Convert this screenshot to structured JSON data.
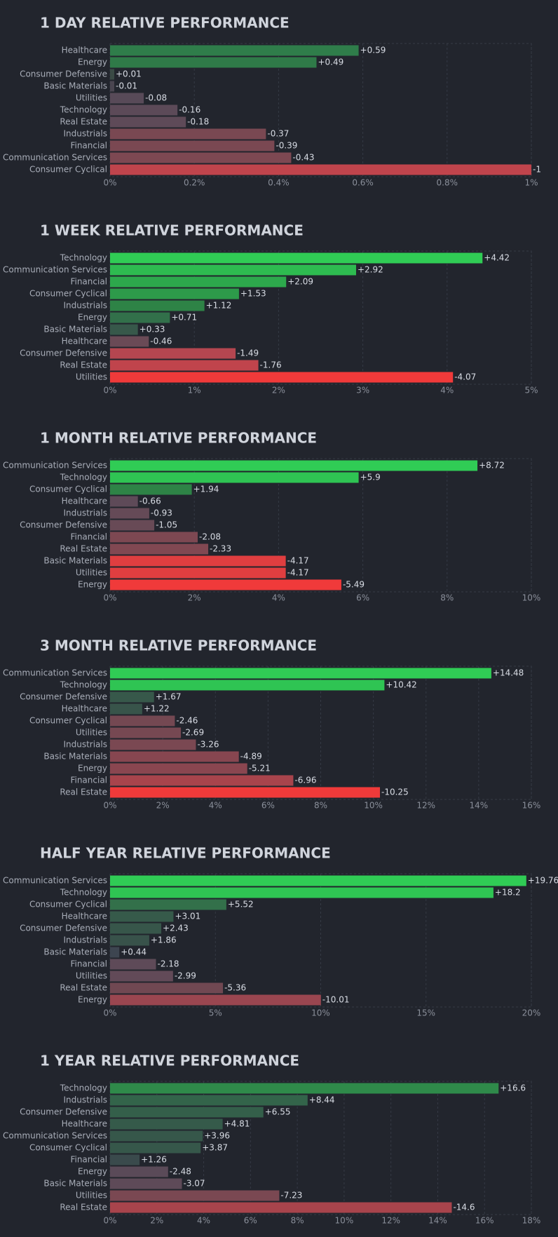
{
  "chart_data": [
    {
      "type": "bar",
      "title": "1 DAY RELATIVE PERFORMANCE",
      "categories": [
        "Healthcare",
        "Energy",
        "Consumer Defensive",
        "Basic Materials",
        "Utilities",
        "Technology",
        "Real Estate",
        "Industrials",
        "Financial",
        "Communication Services",
        "Consumer Cyclical"
      ],
      "values": [
        0.59,
        0.49,
        0.01,
        -0.01,
        -0.08,
        -0.16,
        -0.18,
        -0.37,
        -0.39,
        -0.43,
        -1
      ],
      "value_labels": [
        "+0.59",
        "+0.49",
        "+0.01",
        "-0.01",
        "-0.08",
        "-0.16",
        "-0.18",
        "-0.37",
        "-0.39",
        "-0.43",
        "-1"
      ],
      "colors": [
        "#2f7d4a",
        "#2f7a48",
        "#3a4a45",
        "#4a4550",
        "#584a58",
        "#5c4a58",
        "#5e4a58",
        "#794852",
        "#7a4852",
        "#7d4852",
        "#c0444c"
      ],
      "xlim": [
        0,
        1
      ],
      "xticks": [
        {
          "value": 0,
          "label": "0%"
        },
        {
          "value": 0.2,
          "label": "0.2%"
        },
        {
          "value": 0.4,
          "label": "0.4%"
        },
        {
          "value": 0.6,
          "label": "0.6%"
        },
        {
          "value": 0.8,
          "label": "0.8%"
        },
        {
          "value": 1,
          "label": "1%"
        }
      ],
      "grid": true
    },
    {
      "type": "bar",
      "title": "1 WEEK RELATIVE PERFORMANCE",
      "categories": [
        "Technology",
        "Communication Services",
        "Financial",
        "Consumer Cyclical",
        "Industrials",
        "Energy",
        "Basic Materials",
        "Healthcare",
        "Consumer Defensive",
        "Real Estate",
        "Utilities"
      ],
      "values": [
        4.42,
        2.92,
        2.09,
        1.53,
        1.12,
        0.71,
        0.33,
        -0.46,
        -1.49,
        -1.76,
        -4.07
      ],
      "value_labels": [
        "+4.42",
        "+2.92",
        "+2.09",
        "+1.53",
        "+1.12",
        "+0.71",
        "+0.33",
        "-0.46",
        "-1.49",
        "-1.76",
        "-4.07"
      ],
      "colors": [
        "#30cc55",
        "#2ebb50",
        "#2da84c",
        "#2d9a4a",
        "#2e8346",
        "#32704a",
        "#37584a",
        "#6a4a56",
        "#b54650",
        "#c0444c",
        "#f03a3a"
      ],
      "xlim": [
        0,
        5
      ],
      "xticks": [
        {
          "value": 0,
          "label": "0%"
        },
        {
          "value": 1,
          "label": "1%"
        },
        {
          "value": 2,
          "label": "2%"
        },
        {
          "value": 3,
          "label": "3%"
        },
        {
          "value": 4,
          "label": "4%"
        },
        {
          "value": 5,
          "label": "5%"
        }
      ],
      "grid": true
    },
    {
      "type": "bar",
      "title": "1 MONTH RELATIVE PERFORMANCE",
      "categories": [
        "Communication Services",
        "Technology",
        "Consumer Cyclical",
        "Healthcare",
        "Industrials",
        "Consumer Defensive",
        "Financial",
        "Real Estate",
        "Basic Materials",
        "Utilities",
        "Energy"
      ],
      "values": [
        8.72,
        5.9,
        1.94,
        -0.66,
        -0.93,
        -1.05,
        -2.08,
        -2.33,
        -4.17,
        -4.17,
        -5.49
      ],
      "value_labels": [
        "+8.72",
        "+5.9",
        "+1.94",
        "-0.66",
        "-0.93",
        "-1.05",
        "-2.08",
        "-2.33",
        "-4.17",
        "-4.17",
        "-5.49"
      ],
      "colors": [
        "#30cc55",
        "#2fc453",
        "#2e8346",
        "#5e4a58",
        "#654a57",
        "#684a56",
        "#7d4852",
        "#814852",
        "#e03e40",
        "#e03e40",
        "#f03a3a"
      ],
      "xlim": [
        0,
        10
      ],
      "xticks": [
        {
          "value": 0,
          "label": "0%"
        },
        {
          "value": 2,
          "label": "2%"
        },
        {
          "value": 4,
          "label": "4%"
        },
        {
          "value": 6,
          "label": "6%"
        },
        {
          "value": 8,
          "label": "8%"
        },
        {
          "value": 10,
          "label": "10%"
        }
      ],
      "grid": true
    },
    {
      "type": "bar",
      "title": "3 MONTH RELATIVE PERFORMANCE",
      "categories": [
        "Communication Services",
        "Technology",
        "Consumer Defensive",
        "Healthcare",
        "Consumer Cyclical",
        "Utilities",
        "Industrials",
        "Basic Materials",
        "Energy",
        "Financial",
        "Real Estate"
      ],
      "values": [
        14.48,
        10.42,
        1.67,
        1.22,
        -2.46,
        -2.69,
        -3.26,
        -4.89,
        -5.21,
        -6.96,
        -10.25
      ],
      "value_labels": [
        "+14.48",
        "+10.42",
        "+1.67",
        "+1.22",
        "-2.46",
        "-2.69",
        "-3.26",
        "-4.89",
        "-5.21",
        "-6.96",
        "-10.25"
      ],
      "colors": [
        "#30cc55",
        "#2fc453",
        "#37584a",
        "#38544a",
        "#744852",
        "#764852",
        "#7a4852",
        "#874650",
        "#8a4650",
        "#a8444c",
        "#f03a3a"
      ],
      "xlim": [
        0,
        16
      ],
      "xticks": [
        {
          "value": 0,
          "label": "0%"
        },
        {
          "value": 2,
          "label": "2%"
        },
        {
          "value": 4,
          "label": "4%"
        },
        {
          "value": 6,
          "label": "6%"
        },
        {
          "value": 8,
          "label": "8%"
        },
        {
          "value": 10,
          "label": "10%"
        },
        {
          "value": 12,
          "label": "12%"
        },
        {
          "value": 14,
          "label": "14%"
        },
        {
          "value": 16,
          "label": "16%"
        }
      ],
      "grid": true
    },
    {
      "type": "bar",
      "title": "HALF YEAR RELATIVE PERFORMANCE",
      "categories": [
        "Communication Services",
        "Technology",
        "Consumer Cyclical",
        "Healthcare",
        "Consumer Defensive",
        "Industrials",
        "Basic Materials",
        "Financial",
        "Utilities",
        "Real Estate",
        "Energy"
      ],
      "values": [
        19.76,
        18.2,
        5.52,
        3.01,
        2.43,
        1.86,
        0.44,
        -2.18,
        -2.99,
        -5.36,
        -10.01
      ],
      "value_labels": [
        "+19.76",
        "+18.2",
        "+5.52",
        "+3.01",
        "+2.43",
        "+1.86",
        "+0.44",
        "-2.18",
        "-2.99",
        "-5.36",
        "-10.01"
      ],
      "colors": [
        "#30cc55",
        "#2fc453",
        "#33704a",
        "#365a4a",
        "#37564a",
        "#38524a",
        "#3d4550",
        "#5e4a58",
        "#624a58",
        "#704852",
        "#9a4650"
      ],
      "xlim": [
        0,
        20
      ],
      "xticks": [
        {
          "value": 0,
          "label": "0%"
        },
        {
          "value": 5,
          "label": "5%"
        },
        {
          "value": 10,
          "label": "10%"
        },
        {
          "value": 15,
          "label": "15%"
        },
        {
          "value": 20,
          "label": "20%"
        }
      ],
      "grid": true
    },
    {
      "type": "bar",
      "title": "1 YEAR RELATIVE PERFORMANCE",
      "categories": [
        "Technology",
        "Industrials",
        "Consumer Defensive",
        "Healthcare",
        "Communication Services",
        "Consumer Cyclical",
        "Financial",
        "Energy",
        "Basic Materials",
        "Utilities",
        "Real Estate"
      ],
      "values": [
        16.6,
        8.44,
        6.55,
        4.81,
        3.96,
        3.87,
        1.26,
        -2.48,
        -3.07,
        -7.23,
        -14.6
      ],
      "value_labels": [
        "+16.6",
        "+8.44",
        "+6.55",
        "+4.81",
        "+3.96",
        "+3.87",
        "+1.26",
        "-2.48",
        "-3.07",
        "-7.23",
        "-14.6"
      ],
      "colors": [
        "#2f8a4a",
        "#33644a",
        "#345f4a",
        "#355a4a",
        "#36574a",
        "#36574a",
        "#3a4a4c",
        "#5a4a58",
        "#5e4a58",
        "#7a4852",
        "#a8444c"
      ],
      "xlim": [
        0,
        18
      ],
      "xticks": [
        {
          "value": 0,
          "label": "0%"
        },
        {
          "value": 2,
          "label": "2%"
        },
        {
          "value": 4,
          "label": "4%"
        },
        {
          "value": 6,
          "label": "6%"
        },
        {
          "value": 8,
          "label": "8%"
        },
        {
          "value": 10,
          "label": "10%"
        },
        {
          "value": 12,
          "label": "12%"
        },
        {
          "value": 14,
          "label": "14%"
        },
        {
          "value": 16,
          "label": "16%"
        },
        {
          "value": 18,
          "label": "18%"
        }
      ],
      "grid": true
    }
  ]
}
